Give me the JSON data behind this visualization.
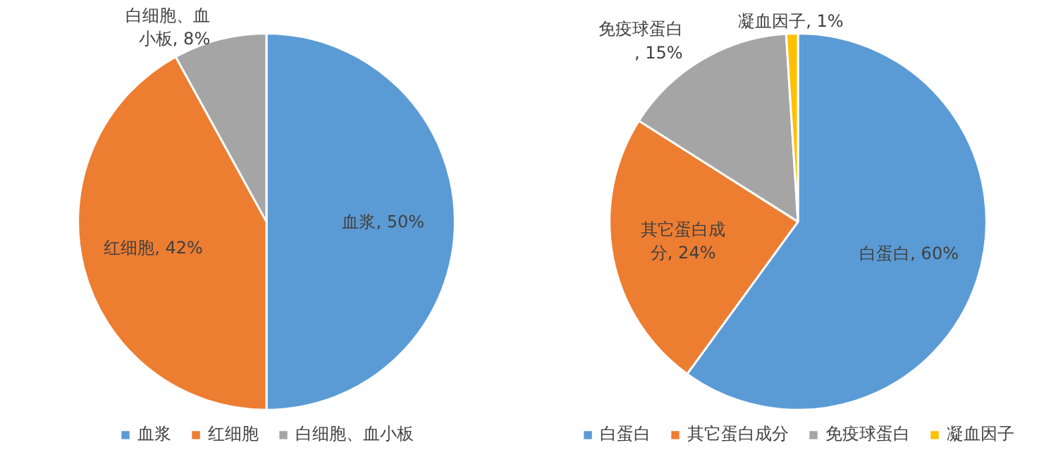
{
  "chart_data": [
    {
      "type": "pie",
      "categories": [
        "血浆",
        "红细胞",
        "白细胞、血小板"
      ],
      "values": [
        50,
        42,
        8
      ],
      "colors": [
        "#5b9bd5",
        "#ed7d31",
        "#a5a5a5"
      ],
      "value_labels": [
        "血浆, 50%",
        "红细胞, 42%",
        "白细胞、血小板, 8%"
      ],
      "legend": "bottom"
    },
    {
      "type": "pie",
      "categories": [
        "白蛋白",
        "其它蛋白成分",
        "免疫球蛋白",
        "凝血因子"
      ],
      "values": [
        60,
        24,
        15,
        1
      ],
      "colors": [
        "#5b9bd5",
        "#ed7d31",
        "#a5a5a5",
        "#ffc000"
      ],
      "value_labels": [
        "白蛋白, 60%",
        "其它蛋白成分, 24%",
        "免疫球蛋白, 15%",
        "凝血因子, 1%"
      ],
      "legend": "bottom"
    }
  ]
}
